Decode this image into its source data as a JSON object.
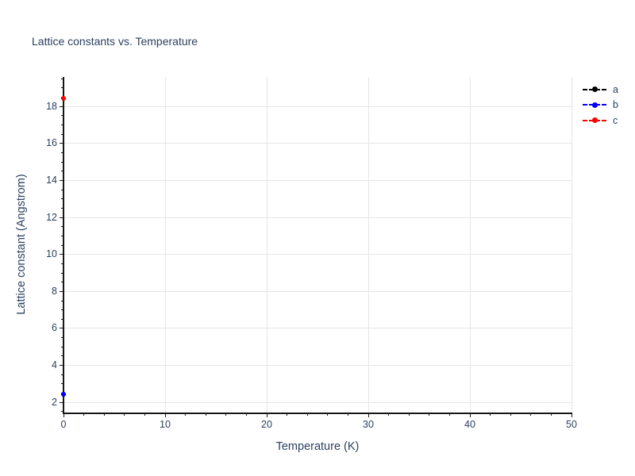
{
  "page": {
    "background": "#ffffff"
  },
  "chart_data": {
    "type": "scatter",
    "title": "Lattice constants vs. Temperature",
    "xlabel": "Temperature (K)",
    "ylabel": "Lattice constant (Angstrom)",
    "xlim": [
      0,
      50
    ],
    "ylim": [
      1.45,
      19.6
    ],
    "x_ticks": [
      0,
      10,
      20,
      30,
      40,
      50
    ],
    "y_ticks": [
      2,
      4,
      6,
      8,
      10,
      12,
      14,
      16,
      18
    ],
    "x_minor_tick_step": 2,
    "y_minor_tick_step": 0.5,
    "grid": true,
    "grid_color": "#e5e5e5",
    "axis_color": "#161616",
    "text_color": "#2a3f5f",
    "background_color": "#ffffff",
    "legend_position": "top-right-outside",
    "marker": "circle",
    "line_style": "dashed",
    "series": [
      {
        "name": "a",
        "color": "#000000",
        "x": [
          0
        ],
        "y": [
          2.45
        ],
        "note": "marker coincides with series b point and is hidden beneath it"
      },
      {
        "name": "b",
        "color": "#0000ff",
        "x": [
          0
        ],
        "y": [
          2.45
        ]
      },
      {
        "name": "c",
        "color": "#ff0000",
        "x": [
          0
        ],
        "y": [
          18.45
        ]
      }
    ]
  }
}
